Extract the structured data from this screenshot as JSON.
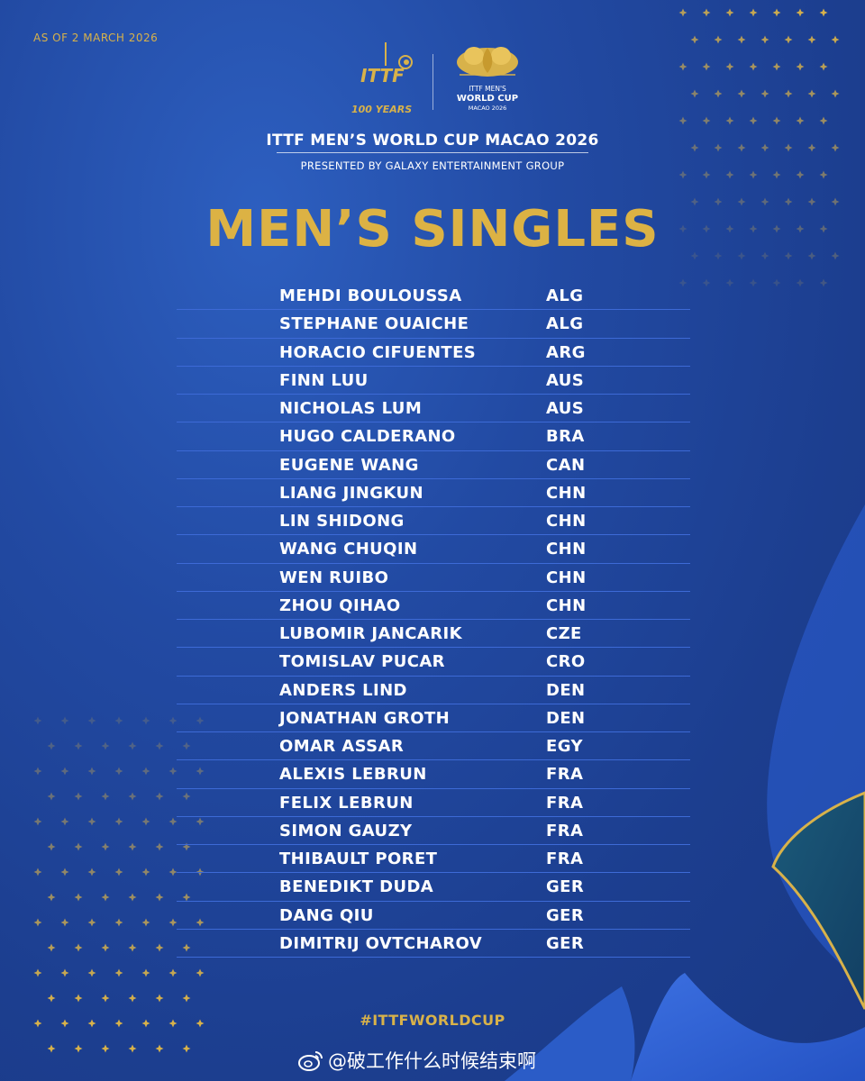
{
  "header": {
    "as_of": "AS OF 2 MARCH 2026",
    "ittf_logo_text": "ITTF",
    "ittf_logo_sub": "100 YEARS",
    "wc_logo_line1": "ITTF MEN'S",
    "wc_logo_line2": "WORLD CUP",
    "wc_logo_line3": "MACAO 2026",
    "event_title": "ITTF MEN’S WORLD CUP MACAO 2026",
    "presented_by": "PRESENTED BY GALAXY ENTERTAINMENT GROUP"
  },
  "heading": "MEN’S SINGLES",
  "players": [
    {
      "name": "MEHDI BOULOUSSA",
      "country": "ALG"
    },
    {
      "name": "STEPHANE OUAICHE",
      "country": "ALG"
    },
    {
      "name": "HORACIO CIFUENTES",
      "country": "ARG"
    },
    {
      "name": "FINN LUU",
      "country": "AUS"
    },
    {
      "name": "NICHOLAS LUM",
      "country": "AUS"
    },
    {
      "name": "HUGO CALDERANO",
      "country": "BRA"
    },
    {
      "name": "EUGENE WANG",
      "country": "CAN"
    },
    {
      "name": "LIANG JINGKUN",
      "country": "CHN"
    },
    {
      "name": "LIN SHIDONG",
      "country": "CHN"
    },
    {
      "name": "WANG CHUQIN",
      "country": "CHN"
    },
    {
      "name": "WEN RUIBO",
      "country": "CHN"
    },
    {
      "name": "ZHOU QIHAO",
      "country": "CHN"
    },
    {
      "name": "LUBOMIR JANCARIK",
      "country": "CZE"
    },
    {
      "name": "TOMISLAV PUCAR",
      "country": "CRO"
    },
    {
      "name": "ANDERS LIND",
      "country": "DEN"
    },
    {
      "name": "JONATHAN GROTH",
      "country": "DEN"
    },
    {
      "name": "OMAR ASSAR",
      "country": "EGY"
    },
    {
      "name": "ALEXIS LEBRUN",
      "country": "FRA"
    },
    {
      "name": "FELIX LEBRUN",
      "country": "FRA"
    },
    {
      "name": "SIMON GAUZY",
      "country": "FRA"
    },
    {
      "name": "THIBAULT PORET",
      "country": "FRA"
    },
    {
      "name": "BENEDIKT DUDA",
      "country": "GER"
    },
    {
      "name": "DANG QIU",
      "country": "GER"
    },
    {
      "name": "DIMITRIJ OVTCHAROV",
      "country": "GER"
    }
  ],
  "footer": {
    "hashtag": "#ITTFWORLDCUP",
    "watermark": "@破工作什么时候结束啊"
  },
  "colors": {
    "background": "#224aa3",
    "gold": "#dcb244",
    "divider": "#3d6ad6"
  },
  "icons": {
    "ittf_logo": "ittf-100-years-logo",
    "world_cup_logo": "macao-world-cup-lotus-logo",
    "watermark": "weibo-icon"
  }
}
